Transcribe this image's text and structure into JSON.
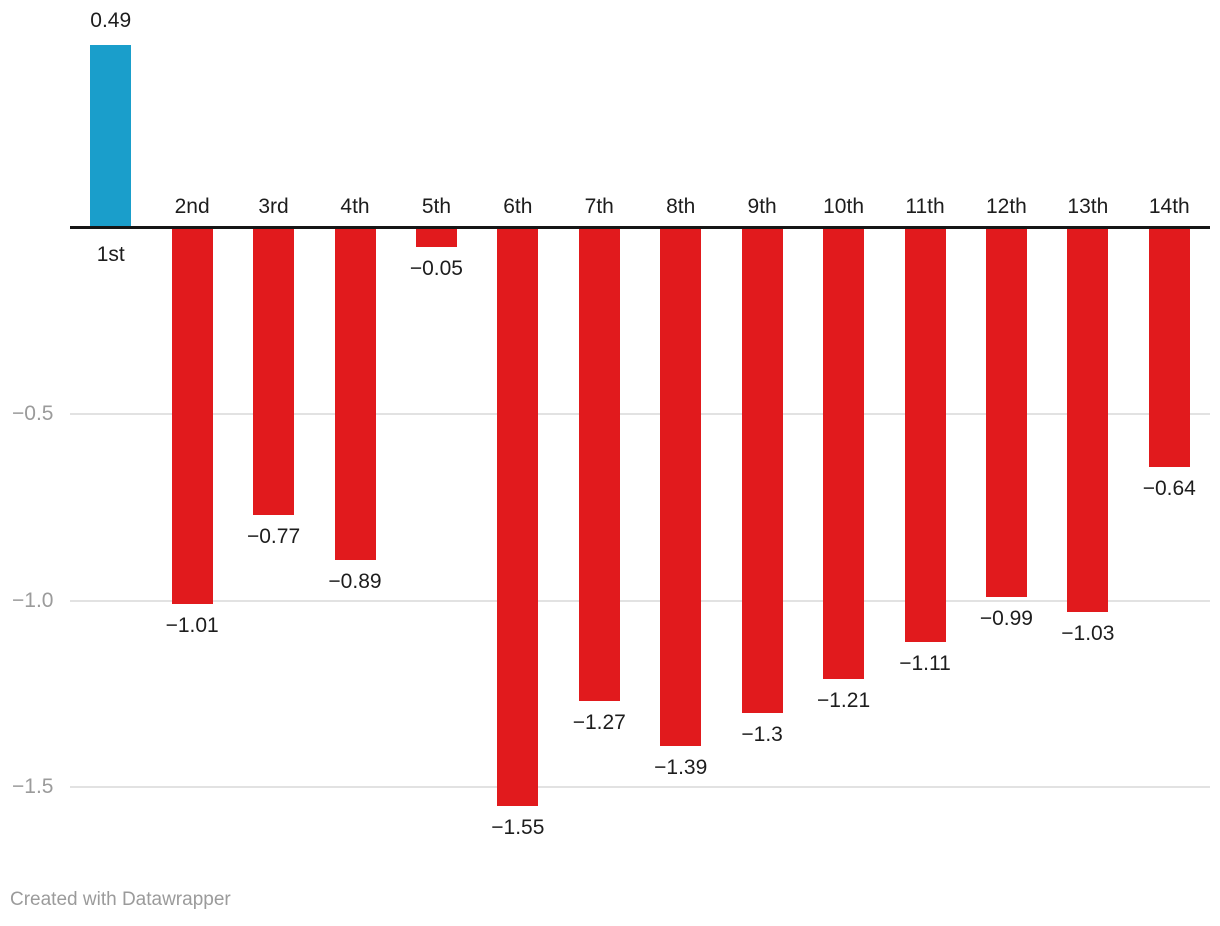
{
  "chart_data": {
    "type": "bar",
    "categories": [
      "1st",
      "2nd",
      "3rd",
      "4th",
      "5th",
      "6th",
      "7th",
      "8th",
      "9th",
      "10th",
      "11th",
      "12th",
      "13th",
      "14th"
    ],
    "values": [
      0.49,
      -1.01,
      -0.77,
      -0.89,
      -0.05,
      -1.55,
      -1.27,
      -1.39,
      -1.3,
      -1.21,
      -1.11,
      -0.99,
      -1.03,
      -0.64
    ],
    "value_labels": [
      "0.49",
      "−1.01",
      "−0.77",
      "−0.89",
      "−0.05",
      "−1.55",
      "−1.27",
      "−1.39",
      "−1.3",
      "−1.21",
      "−1.11",
      "−0.99",
      "−1.03",
      "−0.64"
    ],
    "xlabel": "",
    "ylabel": "",
    "ylim": [
      -1.85,
      0.6
    ],
    "grid": true,
    "yticks": [
      {
        "value": -0.5,
        "label": "−0.5"
      },
      {
        "value": -1.0,
        "label": "−1.0"
      },
      {
        "value": -1.5,
        "label": "−1.5"
      }
    ]
  },
  "colors": {
    "positive_bar": "#1a9ecb",
    "negative_bar": "#e11a1d",
    "gridline": "#e2e2e2",
    "axis_line": "#161616",
    "tick_label": "#9b9b9b",
    "data_label": "#1d1d1d",
    "footer_text": "#9b9b9b",
    "background": "#ffffff"
  },
  "footer": {
    "attribution": "Created with Datawrapper"
  }
}
